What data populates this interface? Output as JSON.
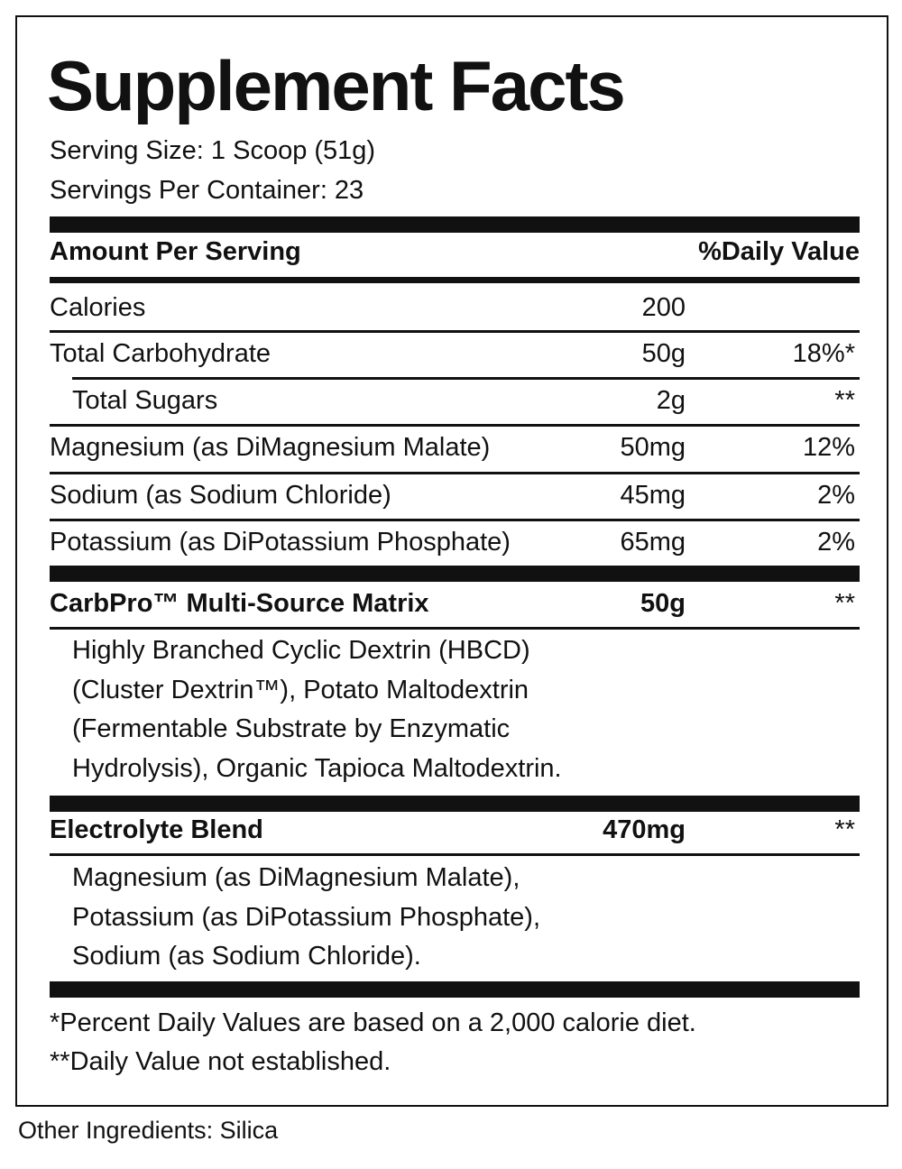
{
  "title": "Supplement Facts",
  "serving_size": "Serving Size: 1 Scoop (51g)",
  "servings_per_container": "Servings Per Container: 23",
  "header": {
    "amount": "Amount Per Serving",
    "dv": "%Daily Value"
  },
  "rows": [
    {
      "name": "Calories",
      "amount": "200",
      "dv": ""
    },
    {
      "name": "Total Carbohydrate",
      "amount": "50g",
      "dv": "18%*"
    },
    {
      "name": "Total Sugars",
      "amount": "2g",
      "dv": "**"
    },
    {
      "name": "Magnesium (as DiMagnesium Malate)",
      "amount": "50mg",
      "dv": "12%"
    },
    {
      "name": "Sodium (as Sodium Chloride)",
      "amount": "45mg",
      "dv": "2%"
    },
    {
      "name": "Potassium (as DiPotassium Phosphate)",
      "amount": "65mg",
      "dv": "2%"
    }
  ],
  "blends": [
    {
      "name": "CarbPro™ Multi-Source Matrix",
      "amount": "50g",
      "dv": "**",
      "lines": [
        "Highly Branched Cyclic Dextrin (HBCD)",
        "(Cluster Dextrin™), Potato Maltodextrin",
        "(Fermentable Substrate by Enzymatic",
        "Hydrolysis), Organic Tapioca Maltodextrin."
      ]
    },
    {
      "name": "Electrolyte Blend",
      "amount": "470mg",
      "dv": "**",
      "lines": [
        "Magnesium (as DiMagnesium Malate),",
        "Potassium (as DiPotassium Phosphate),",
        "Sodium (as Sodium Chloride)."
      ]
    }
  ],
  "footnotes": [
    "*Percent Daily Values are based on a 2,000 calorie diet.",
    "**Daily Value not established."
  ],
  "other_ingredients": "Other Ingredients: Silica"
}
